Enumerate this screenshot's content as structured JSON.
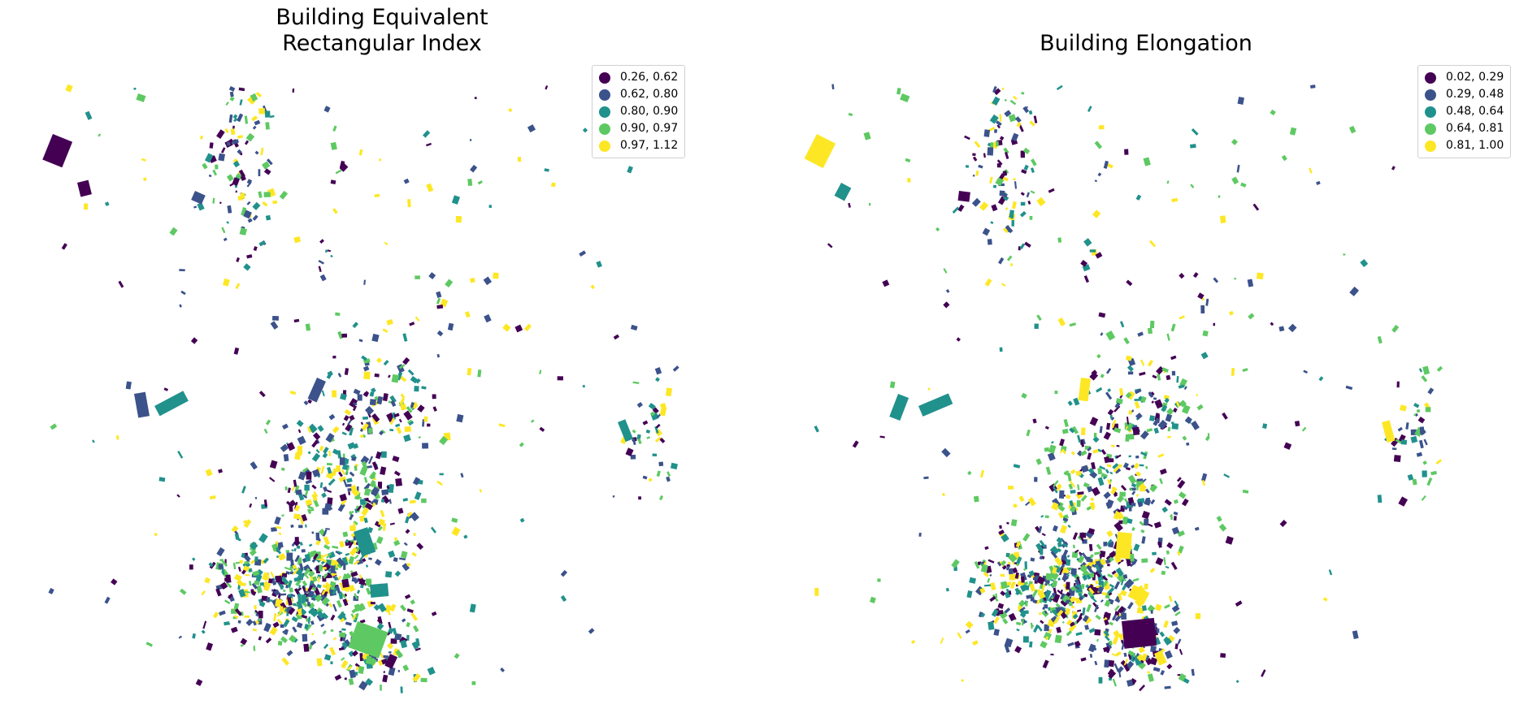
{
  "panels": [
    {
      "title_line1": "Building Equivalent",
      "title_line2": "Rectangular Index",
      "legend": [
        {
          "label": "0.26, 0.62",
          "color": "#440154"
        },
        {
          "label": "0.62, 0.80",
          "color": "#3b528b"
        },
        {
          "label": "0.80, 0.90",
          "color": "#21918c"
        },
        {
          "label": "0.90, 0.97",
          "color": "#5ec962"
        },
        {
          "label": "0.97, 1.12",
          "color": "#fde725"
        }
      ]
    },
    {
      "title_line1": "Building Elongation",
      "title_line2": "",
      "legend": [
        {
          "label": "0.02, 0.29",
          "color": "#440154"
        },
        {
          "label": "0.29, 0.48",
          "color": "#3b528b"
        },
        {
          "label": "0.48, 0.64",
          "color": "#21918c"
        },
        {
          "label": "0.64, 0.81",
          "color": "#5ec962"
        },
        {
          "label": "0.81, 1.00",
          "color": "#fde725"
        }
      ]
    }
  ]
}
